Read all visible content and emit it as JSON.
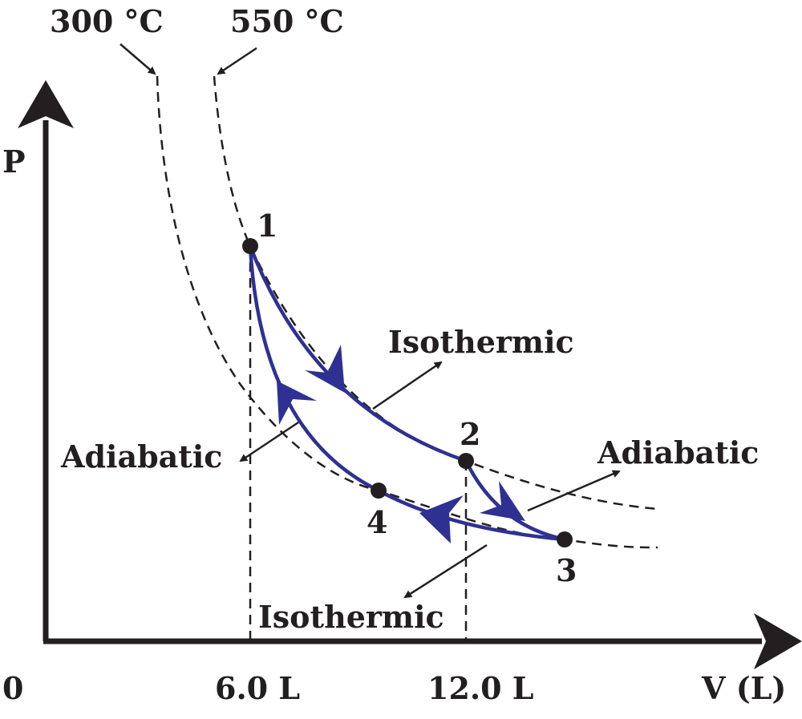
{
  "diagram": {
    "axes": {
      "y_label": "P",
      "x_label": "V (L)",
      "origin": "0",
      "x_marks": [
        "6.0 L",
        "12.0 L"
      ]
    },
    "isotherms": [
      "300 °C",
      "550 °C"
    ],
    "points": [
      "1",
      "2",
      "3",
      "4"
    ],
    "processes": [
      "Isothermic",
      "Adiabatic",
      "Adiabatic",
      "Isothermic"
    ]
  }
}
